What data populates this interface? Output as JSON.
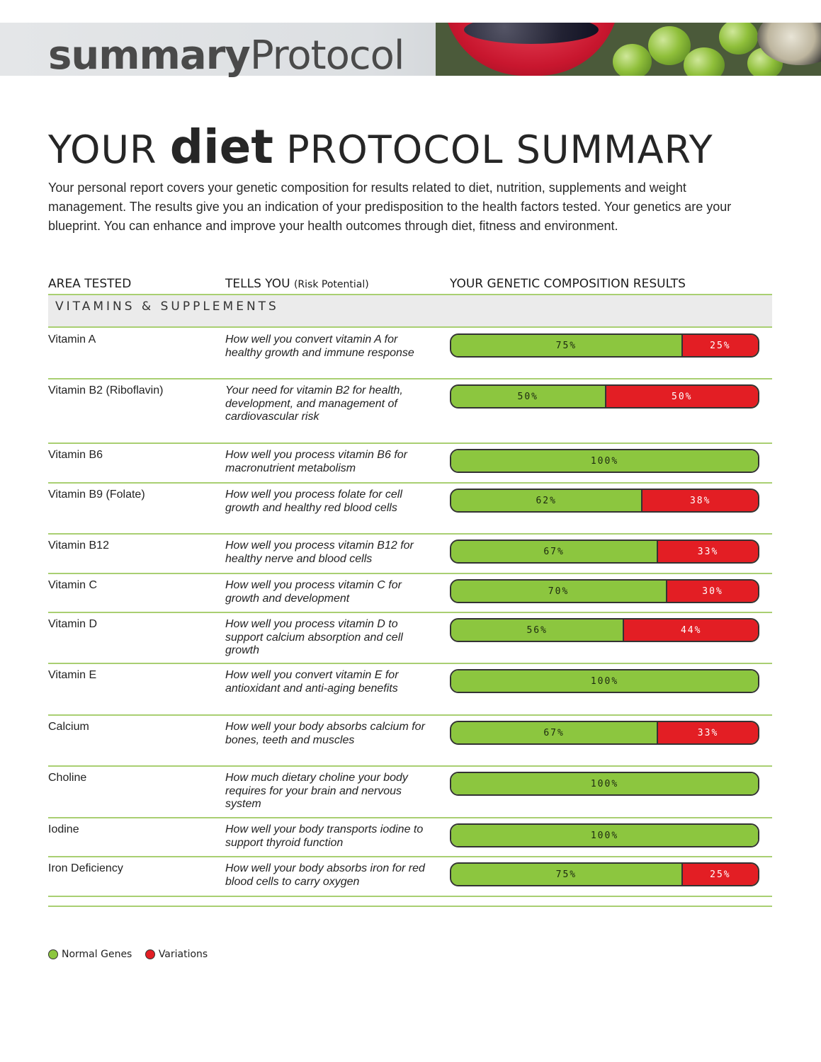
{
  "colors": {
    "normal": "#8cc63f",
    "variation": "#e31e24",
    "rule": "#a9cf72"
  },
  "banner": {
    "title_bold": "summary",
    "title_rest": "Protocol"
  },
  "page": {
    "title_pre": "YOUR",
    "title_bold": "diet",
    "title_post": "PROTOCOL SUMMARY",
    "intro": "Your personal report covers your genetic composition for results related to diet, nutrition, supplements and weight management. The results give you an indication of your predisposition to the health factors tested. Your genetics are your blueprint. You can enhance and improve your health outcomes through diet, fitness and environment."
  },
  "table": {
    "headers": {
      "area": "AREA TESTED",
      "tells": "TELLS YOU",
      "tells_sub": "(Risk Potential)",
      "results": "YOUR GENETIC COMPOSITION RESULTS"
    },
    "section": "VITAMINS & SUPPLEMENTS",
    "rows": [
      {
        "area": "Vitamin A",
        "desc": "How well you convert vitamin A for healthy growth and immune response",
        "normal": 75,
        "variation": 25
      },
      {
        "area": "Vitamin B2 (Riboflavin)",
        "desc": "Your need for vitamin B2 for health, development, and management of cardiovascular risk",
        "normal": 50,
        "variation": 50
      },
      {
        "area": "Vitamin B6",
        "desc": "How well you process vitamin B6 for macronutrient metabolism",
        "normal": 100,
        "variation": 0
      },
      {
        "area": "Vitamin B9 (Folate)",
        "desc": "How well you process folate for cell growth and healthy red blood cells",
        "normal": 62,
        "variation": 38
      },
      {
        "area": "Vitamin B12",
        "desc": "How well you process vitamin B12 for healthy nerve and blood cells",
        "normal": 67,
        "variation": 33
      },
      {
        "area": "Vitamin C",
        "desc": "How well you process vitamin C for growth and development",
        "normal": 70,
        "variation": 30
      },
      {
        "area": "Vitamin D",
        "desc": "How well you process vitamin D to support calcium absorption and cell growth",
        "normal": 56,
        "variation": 44
      },
      {
        "area": "Vitamin E",
        "desc": "How well you convert vitamin E for antioxidant and anti-aging benefits",
        "normal": 100,
        "variation": 0
      },
      {
        "area": "Calcium",
        "desc": "How well your body absorbs calcium for bones, teeth and muscles",
        "normal": 67,
        "variation": 33
      },
      {
        "area": "Choline",
        "desc": "How much dietary choline your body requires for your brain and nervous system",
        "normal": 100,
        "variation": 0
      },
      {
        "area": "Iodine",
        "desc": "How well your body transports iodine to support thyroid function",
        "normal": 100,
        "variation": 0
      },
      {
        "area": "Iron Deficiency",
        "desc": "How well your body absorbs iron for red blood cells to carry oxygen",
        "normal": 75,
        "variation": 25
      }
    ]
  },
  "legend": {
    "normal": "Normal Genes",
    "variation": "Variations"
  }
}
